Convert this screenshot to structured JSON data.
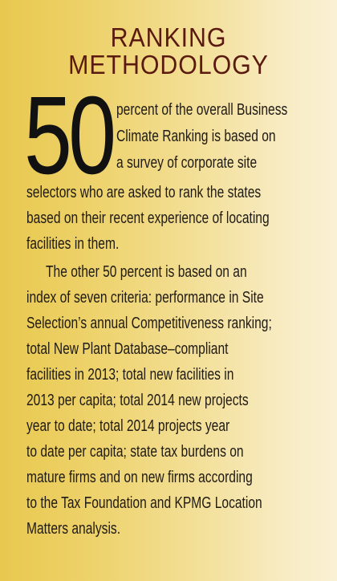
{
  "heading": {
    "line1": "RANKING",
    "line2": "METHODOLOGY"
  },
  "drop_cap": "50",
  "body_lines": [
    "percent of the overall Business",
    "Climate Ranking is based on",
    "a survey of corporate site",
    "selectors who are asked to rank the states",
    "based on their recent experience of locating",
    "facilities in them.",
    "The other 50 percent is based on an",
    "index of seven criteria: performance in Site",
    "Selection’s annual Competitiveness ranking;",
    "total New Plant Database–compliant",
    "facilities in 2013; total new facilities in",
    "2013 per capita; total 2014 new projects",
    "year to date; total 2014 projects year",
    "to date per capita; state tax burdens on",
    "mature firms and on new firms according",
    "to the Tax Foundation and KPMG Location",
    "Matters analysis."
  ]
}
